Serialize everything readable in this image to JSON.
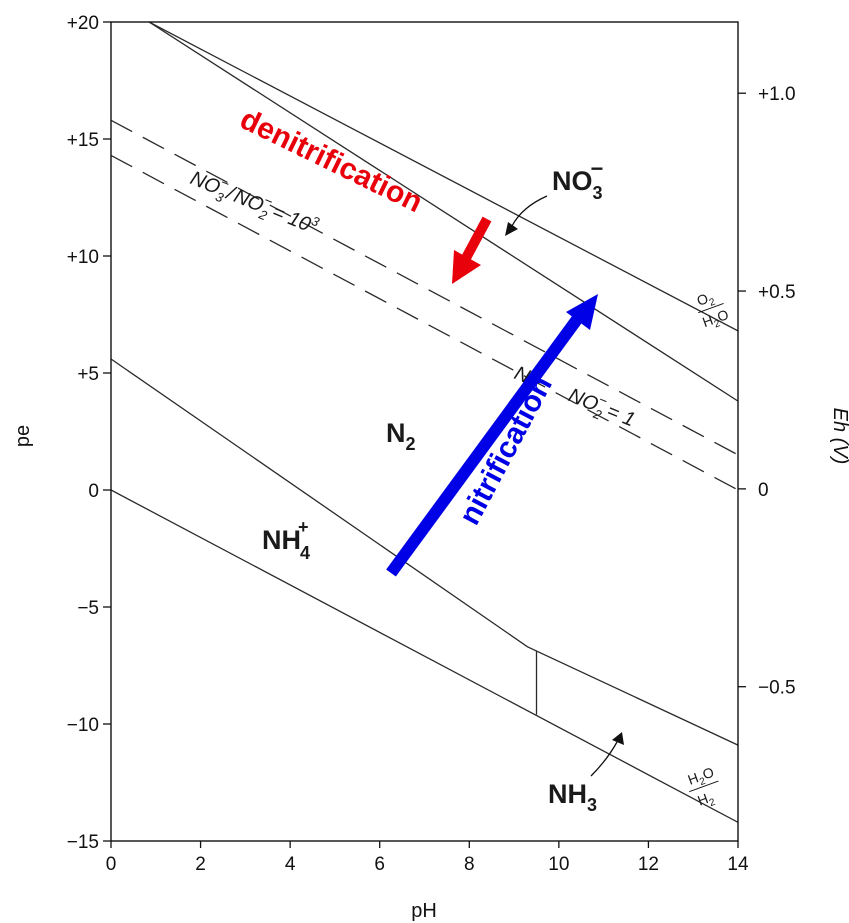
{
  "chart_data": {
    "type": "line",
    "xlabel": "pH",
    "ylabel": "pe",
    "y2label": "Eh (V)",
    "xlim": [
      0,
      14
    ],
    "ylim": [
      -15,
      20
    ],
    "y2lim": [
      -0.89,
      1.18
    ],
    "grid": false,
    "x_ticks": [
      0,
      2,
      4,
      6,
      8,
      10,
      12,
      14
    ],
    "y_ticks": [
      {
        "value": 20,
        "label": "+20"
      },
      {
        "value": 15,
        "label": "+15"
      },
      {
        "value": 10,
        "label": "+10"
      },
      {
        "value": 5,
        "label": "+5"
      },
      {
        "value": 0,
        "label": "0"
      },
      {
        "value": -5,
        "label": "−5"
      },
      {
        "value": -10,
        "label": "−10"
      },
      {
        "value": -15,
        "label": "−15"
      }
    ],
    "y2_ticks": [
      {
        "value": 1.0,
        "label": "+1.0"
      },
      {
        "value": 0.5,
        "label": "+0.5"
      },
      {
        "value": 0.0,
        "label": "0"
      },
      {
        "value": -0.5,
        "label": "−0.5"
      }
    ],
    "series": [
      {
        "style": "solid",
        "points": [
          [
            0.85,
            20
          ],
          [
            14,
            6.8
          ]
        ]
      },
      {
        "style": "solid",
        "points": [
          [
            0.85,
            20
          ],
          [
            14,
            3.8
          ]
        ]
      },
      {
        "style": "dashed",
        "points": [
          [
            0,
            15.8
          ],
          [
            14,
            1.5
          ]
        ]
      },
      {
        "style": "dashed",
        "points": [
          [
            0,
            14.3
          ],
          [
            14,
            0
          ]
        ]
      },
      {
        "style": "solid",
        "points": [
          [
            0,
            5.6
          ],
          [
            9.3,
            -6.7
          ],
          [
            14,
            -10.9
          ]
        ]
      },
      {
        "style": "solid",
        "points": [
          [
            0,
            0
          ],
          [
            14,
            -14.2
          ]
        ]
      },
      {
        "style": "solid",
        "points": [
          [
            9.5,
            -6.9
          ],
          [
            9.5,
            -9.6
          ]
        ]
      }
    ],
    "region_labels": [
      {
        "text": "N",
        "sub": "2",
        "x": 6.1,
        "y": 2.4
      },
      {
        "text": "NH",
        "sub": "4",
        "sup": "+",
        "x": 3.4,
        "y": -2.3
      },
      {
        "text": "NO",
        "sub": "3",
        "sup": "−",
        "x": 10.1,
        "y": 13.3
      },
      {
        "text": "NH",
        "sub": "3",
        "x": 10.9,
        "y": -13.0
      }
    ],
    "ratio_labels": [
      {
        "top": "NO",
        "top_sub": "3",
        "top_sup": "−",
        "slash": "/",
        "bottom": "NO",
        "bottom_sub": "2",
        "bottom_sup": "−",
        "value": "= 10",
        "value_sup": "3"
      },
      {
        "lead": "N",
        "top": "NO",
        "top_sub": "2",
        "top_sup": "−",
        "value": "= 1"
      }
    ],
    "water_labels": [
      {
        "upper": "O",
        "upper_sub": "2",
        "lower": "H",
        "lower_sub": "2",
        "lower_rest": "O",
        "x": 13.4,
        "y": 8.0
      },
      {
        "upper": "H",
        "upper_sub": "2",
        "upper_rest": "O",
        "lower": "H",
        "lower_sub": "2",
        "x": 13.4,
        "y": -12.3
      }
    ],
    "annotations": [
      {
        "text": "denitrification",
        "color": "#e8000b"
      },
      {
        "text": "nitrification",
        "color": "#0000e6"
      }
    ]
  }
}
